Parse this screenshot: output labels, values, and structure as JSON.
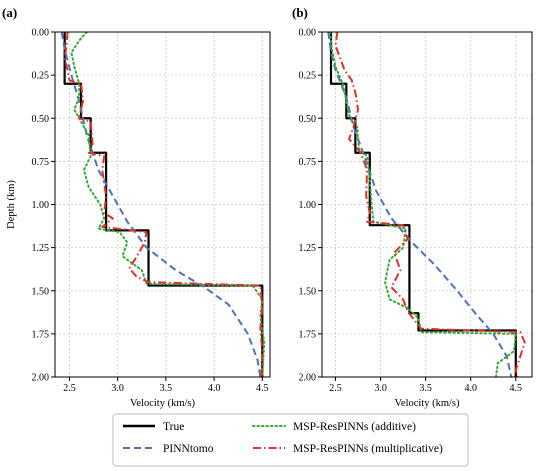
{
  "chart_data": [
    {
      "type": "line",
      "panel_label": "(a)",
      "xlabel": "Velocity (km/s)",
      "ylabel": "Depth (km)",
      "xlim": [
        2.35,
        4.58
      ],
      "ylim": [
        2.0,
        0.0
      ],
      "y_inverted": true,
      "grid": true,
      "xticks": [
        "2.5",
        "3.0",
        "3.5",
        "4.0",
        "4.5"
      ],
      "yticks": [
        "0.00",
        "0.25",
        "0.50",
        "0.75",
        "1.00",
        "1.25",
        "1.50",
        "1.75",
        "2.00"
      ],
      "series": [
        {
          "name": "True",
          "color": "#000000",
          "style": "solid",
          "points": [
            [
              2.45,
              0.0
            ],
            [
              2.45,
              0.3
            ],
            [
              2.62,
              0.3
            ],
            [
              2.62,
              0.5
            ],
            [
              2.72,
              0.5
            ],
            [
              2.72,
              0.7
            ],
            [
              2.88,
              0.7
            ],
            [
              2.88,
              1.15
            ],
            [
              3.32,
              1.15
            ],
            [
              3.32,
              1.47
            ],
            [
              4.5,
              1.47
            ],
            [
              4.5,
              2.0
            ]
          ]
        },
        {
          "name": "PINNtomo",
          "color": "#4f72b8",
          "style": "dashed",
          "points": [
            [
              2.42,
              0.0
            ],
            [
              2.45,
              0.1
            ],
            [
              2.52,
              0.25
            ],
            [
              2.6,
              0.4
            ],
            [
              2.68,
              0.6
            ],
            [
              2.8,
              0.8
            ],
            [
              2.95,
              0.95
            ],
            [
              3.1,
              1.1
            ],
            [
              3.3,
              1.25
            ],
            [
              3.6,
              1.38
            ],
            [
              3.9,
              1.48
            ],
            [
              4.15,
              1.58
            ],
            [
              4.35,
              1.75
            ],
            [
              4.45,
              1.9
            ],
            [
              4.48,
              2.0
            ]
          ]
        },
        {
          "name": "MSP-ResPINNs (additive)",
          "color": "#3aa63a",
          "style": "dotted",
          "points": [
            [
              2.68,
              0.0
            ],
            [
              2.6,
              0.05
            ],
            [
              2.52,
              0.12
            ],
            [
              2.55,
              0.2
            ],
            [
              2.6,
              0.3
            ],
            [
              2.6,
              0.38
            ],
            [
              2.55,
              0.45
            ],
            [
              2.62,
              0.52
            ],
            [
              2.7,
              0.6
            ],
            [
              2.72,
              0.72
            ],
            [
              2.65,
              0.8
            ],
            [
              2.7,
              0.9
            ],
            [
              2.82,
              1.0
            ],
            [
              2.86,
              1.08
            ],
            [
              2.8,
              1.14
            ],
            [
              3.02,
              1.16
            ],
            [
              3.1,
              1.22
            ],
            [
              3.05,
              1.3
            ],
            [
              3.25,
              1.38
            ],
            [
              3.3,
              1.46
            ],
            [
              4.4,
              1.47
            ],
            [
              4.5,
              1.55
            ],
            [
              4.48,
              1.65
            ],
            [
              4.52,
              1.8
            ],
            [
              4.5,
              2.0
            ]
          ]
        },
        {
          "name": "MSP-ResPINNs (multiplicative)",
          "color": "#d9332a",
          "style": "dashdot",
          "points": [
            [
              2.48,
              0.0
            ],
            [
              2.47,
              0.08
            ],
            [
              2.45,
              0.15
            ],
            [
              2.48,
              0.22
            ],
            [
              2.5,
              0.28
            ],
            [
              2.62,
              0.3
            ],
            [
              2.64,
              0.4
            ],
            [
              2.6,
              0.5
            ],
            [
              2.72,
              0.52
            ],
            [
              2.74,
              0.65
            ],
            [
              2.7,
              0.7
            ],
            [
              2.86,
              0.72
            ],
            [
              2.84,
              0.8
            ],
            [
              2.88,
              0.95
            ],
            [
              2.86,
              1.05
            ],
            [
              2.95,
              1.08
            ],
            [
              2.84,
              1.13
            ],
            [
              3.3,
              1.16
            ],
            [
              3.28,
              1.22
            ],
            [
              3.2,
              1.3
            ],
            [
              3.12,
              1.37
            ],
            [
              3.2,
              1.42
            ],
            [
              3.32,
              1.45
            ],
            [
              4.48,
              1.47
            ],
            [
              4.5,
              1.6
            ],
            [
              4.48,
              1.72
            ],
            [
              4.5,
              1.85
            ],
            [
              4.49,
              2.0
            ]
          ]
        }
      ]
    },
    {
      "type": "line",
      "panel_label": "(b)",
      "xlabel": "Velocity (km/s)",
      "ylabel": "",
      "xlim": [
        2.35,
        4.68
      ],
      "ylim": [
        2.0,
        0.0
      ],
      "y_inverted": true,
      "grid": true,
      "xticks": [
        "2.5",
        "3.0",
        "3.5",
        "4.0",
        "4.5"
      ],
      "yticks": [
        "0.00",
        "0.25",
        "0.50",
        "0.75",
        "1.00",
        "1.25",
        "1.50",
        "1.75",
        "2.00"
      ],
      "series": [
        {
          "name": "True",
          "color": "#000000",
          "style": "solid",
          "points": [
            [
              2.45,
              0.0
            ],
            [
              2.45,
              0.3
            ],
            [
              2.62,
              0.3
            ],
            [
              2.62,
              0.5
            ],
            [
              2.72,
              0.5
            ],
            [
              2.72,
              0.7
            ],
            [
              2.88,
              0.7
            ],
            [
              2.88,
              1.12
            ],
            [
              3.32,
              1.12
            ],
            [
              3.32,
              1.63
            ],
            [
              3.42,
              1.63
            ],
            [
              3.42,
              1.73
            ],
            [
              4.5,
              1.73
            ],
            [
              4.5,
              2.0
            ]
          ]
        },
        {
          "name": "PINNtomo",
          "color": "#4f72b8",
          "style": "dashed",
          "points": [
            [
              2.42,
              0.0
            ],
            [
              2.45,
              0.12
            ],
            [
              2.5,
              0.22
            ],
            [
              2.62,
              0.38
            ],
            [
              2.7,
              0.55
            ],
            [
              2.82,
              0.72
            ],
            [
              2.95,
              0.92
            ],
            [
              3.12,
              1.08
            ],
            [
              3.35,
              1.22
            ],
            [
              3.6,
              1.35
            ],
            [
              3.85,
              1.5
            ],
            [
              4.05,
              1.63
            ],
            [
              4.25,
              1.75
            ],
            [
              4.4,
              1.88
            ],
            [
              4.45,
              2.0
            ]
          ]
        },
        {
          "name": "MSP-ResPINNs (additive)",
          "color": "#3aa63a",
          "style": "dotted",
          "points": [
            [
              2.44,
              0.0
            ],
            [
              2.46,
              0.1
            ],
            [
              2.5,
              0.2
            ],
            [
              2.58,
              0.3
            ],
            [
              2.62,
              0.4
            ],
            [
              2.66,
              0.5
            ],
            [
              2.74,
              0.55
            ],
            [
              2.76,
              0.68
            ],
            [
              2.85,
              0.72
            ],
            [
              2.88,
              0.85
            ],
            [
              2.9,
              1.0
            ],
            [
              2.92,
              1.1
            ],
            [
              3.28,
              1.14
            ],
            [
              3.25,
              1.25
            ],
            [
              3.1,
              1.32
            ],
            [
              3.05,
              1.45
            ],
            [
              3.1,
              1.55
            ],
            [
              3.3,
              1.6
            ],
            [
              3.42,
              1.66
            ],
            [
              3.45,
              1.74
            ],
            [
              4.5,
              1.75
            ],
            [
              4.48,
              1.85
            ],
            [
              4.3,
              1.92
            ],
            [
              4.28,
              2.0
            ]
          ]
        },
        {
          "name": "MSP-ResPINNs (multiplicative)",
          "color": "#d9332a",
          "style": "dashdot",
          "points": [
            [
              2.52,
              0.0
            ],
            [
              2.5,
              0.08
            ],
            [
              2.55,
              0.15
            ],
            [
              2.6,
              0.22
            ],
            [
              2.68,
              0.28
            ],
            [
              2.72,
              0.35
            ],
            [
              2.75,
              0.45
            ],
            [
              2.7,
              0.55
            ],
            [
              2.65,
              0.62
            ],
            [
              2.78,
              0.7
            ],
            [
              2.85,
              0.8
            ],
            [
              2.84,
              0.95
            ],
            [
              2.88,
              1.05
            ],
            [
              2.85,
              1.1
            ],
            [
              3.25,
              1.12
            ],
            [
              3.3,
              1.2
            ],
            [
              3.15,
              1.28
            ],
            [
              3.22,
              1.38
            ],
            [
              3.12,
              1.48
            ],
            [
              3.25,
              1.55
            ],
            [
              3.3,
              1.62
            ],
            [
              3.45,
              1.72
            ],
            [
              4.55,
              1.74
            ],
            [
              4.6,
              1.8
            ],
            [
              4.55,
              1.88
            ],
            [
              4.5,
              1.96
            ],
            [
              4.52,
              2.0
            ]
          ]
        }
      ]
    }
  ],
  "legend": {
    "placement": "bottom-center",
    "entries": [
      {
        "label": "True",
        "color": "#000000",
        "style": "solid"
      },
      {
        "label": "PINNtomo",
        "color": "#4f72b8",
        "style": "dashed"
      },
      {
        "label": "MSP-ResPINNs (additive)",
        "color": "#3aa63a",
        "style": "dotted"
      },
      {
        "label": "MSP-ResPINNs (multiplicative)",
        "color": "#d9332a",
        "style": "dashdot"
      }
    ]
  }
}
